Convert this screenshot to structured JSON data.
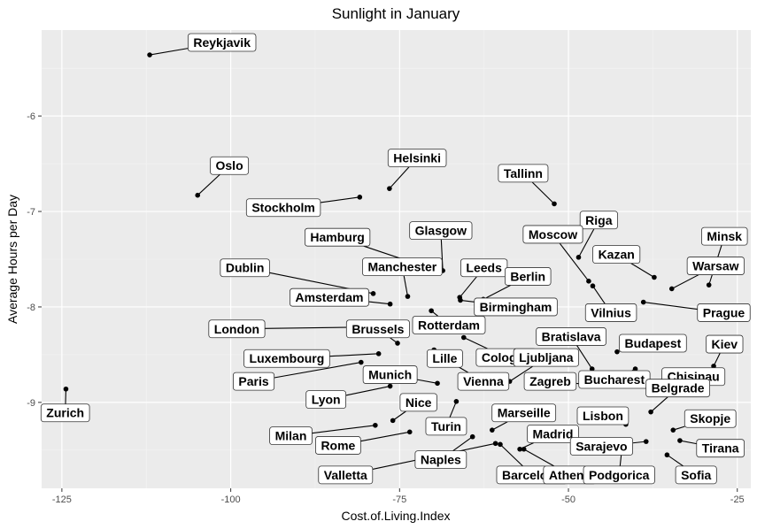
{
  "chart_data": {
    "type": "scatter",
    "title": "Sunlight in January",
    "xlabel": "Cost.of.Living.Index",
    "ylabel": "Average Hours per Day",
    "xlim": [
      -128,
      -23
    ],
    "ylim": [
      -9.9,
      -5.1
    ],
    "xticks": [
      -125,
      -100,
      -75,
      -50,
      -25
    ],
    "yticks": [
      -9,
      -8,
      -7,
      -6
    ],
    "xtick_labels": [
      "-125",
      "-100",
      "-75",
      "-50",
      "-25"
    ],
    "ytick_labels": [
      "-9",
      "-8",
      "-7",
      "-6"
    ],
    "grid": true,
    "panel_background": "#ebebeb",
    "point_color": "#000000",
    "points": [
      {
        "label": "Reykjavik",
        "x": -112.0,
        "y": -5.36,
        "lx": -101.3,
        "ly": -5.23
      },
      {
        "label": "Oslo",
        "x": -104.9,
        "y": -6.83,
        "lx": -100.2,
        "ly": -6.52
      },
      {
        "label": "Helsinki",
        "x": -76.5,
        "y": -6.76,
        "lx": -72.4,
        "ly": -6.44
      },
      {
        "label": "Stockholm",
        "x": -80.9,
        "y": -6.85,
        "lx": -92.2,
        "ly": -6.96
      },
      {
        "label": "Tallinn",
        "x": -52.1,
        "y": -6.92,
        "lx": -56.7,
        "ly": -6.6
      },
      {
        "label": "Riga",
        "x": -48.5,
        "y": -7.48,
        "lx": -45.5,
        "ly": -7.09
      },
      {
        "label": "Hamburg",
        "x": -69.5,
        "y": -7.62,
        "lx": -84.2,
        "ly": -7.27
      },
      {
        "label": "Glasgow",
        "x": -68.6,
        "y": -7.62,
        "lx": -68.9,
        "ly": -7.2
      },
      {
        "label": "Moscow",
        "x": -47.0,
        "y": -7.73,
        "lx": -52.3,
        "ly": -7.24
      },
      {
        "label": "Minsk",
        "x": -29.2,
        "y": -7.77,
        "lx": -26.9,
        "ly": -7.26
      },
      {
        "label": "Kazan",
        "x": -37.3,
        "y": -7.69,
        "lx": -42.9,
        "ly": -7.45
      },
      {
        "label": "Dublin",
        "x": -78.9,
        "y": -7.86,
        "lx": -97.9,
        "ly": -7.59
      },
      {
        "label": "Manchester",
        "x": -73.8,
        "y": -7.89,
        "lx": -74.6,
        "ly": -7.58
      },
      {
        "label": "Leeds",
        "x": -66.1,
        "y": -7.9,
        "lx": -62.5,
        "ly": -7.59
      },
      {
        "label": "Warsaw",
        "x": -34.7,
        "y": -7.81,
        "lx": -28.2,
        "ly": -7.57
      },
      {
        "label": "Berlin",
        "x": -62.6,
        "y": -7.92,
        "lx": -56.0,
        "ly": -7.68
      },
      {
        "label": "Amsterdam",
        "x": -76.4,
        "y": -7.97,
        "lx": -85.4,
        "ly": -7.9
      },
      {
        "label": "Birmingham",
        "x": -66.0,
        "y": -7.93,
        "lx": -57.8,
        "ly": -8.0
      },
      {
        "label": "Vilnius",
        "x": -46.4,
        "y": -7.78,
        "lx": -43.7,
        "ly": -8.06
      },
      {
        "label": "Rotterdam",
        "x": -70.3,
        "y": -8.04,
        "lx": -67.7,
        "ly": -8.19
      },
      {
        "label": "London",
        "x": -78.9,
        "y": -8.21,
        "lx": -99.1,
        "ly": -8.23
      },
      {
        "label": "Brussels",
        "x": -75.3,
        "y": -8.38,
        "lx": -78.2,
        "ly": -8.23
      },
      {
        "label": "Prague",
        "x": -38.9,
        "y": -7.95,
        "lx": -27.0,
        "ly": -8.06
      },
      {
        "label": "Bratislava",
        "x": -46.5,
        "y": -8.65,
        "lx": -49.6,
        "ly": -8.31
      },
      {
        "label": "Budapest",
        "x": -42.8,
        "y": -8.47,
        "lx": -37.5,
        "ly": -8.38
      },
      {
        "label": "Kiev",
        "x": -28.5,
        "y": -8.62,
        "lx": -26.9,
        "ly": -8.39
      },
      {
        "label": "Luxembourg",
        "x": -78.1,
        "y": -8.49,
        "lx": -91.7,
        "ly": -8.54
      },
      {
        "label": "Cologne",
        "x": -65.5,
        "y": -8.32,
        "lx": -59.2,
        "ly": -8.53
      },
      {
        "label": "Lille",
        "x": -69.9,
        "y": -8.45,
        "lx": -68.3,
        "ly": -8.54
      },
      {
        "label": "Ljubljana",
        "x": -58.7,
        "y": -8.78,
        "lx": -53.3,
        "ly": -8.53
      },
      {
        "label": "Munich",
        "x": -69.4,
        "y": -8.8,
        "lx": -76.4,
        "ly": -8.71
      },
      {
        "label": "Paris",
        "x": -80.7,
        "y": -8.58,
        "lx": -96.6,
        "ly": -8.78
      },
      {
        "label": "Vienna",
        "x": -67.2,
        "y": -8.59,
        "lx": -62.6,
        "ly": -8.78
      },
      {
        "label": "Zagreb",
        "x": -47.4,
        "y": -8.81,
        "lx": -52.7,
        "ly": -8.78
      },
      {
        "label": "Bucharest",
        "x": -40.1,
        "y": -8.65,
        "lx": -43.2,
        "ly": -8.76
      },
      {
        "label": "Chisinau",
        "x": -32.8,
        "y": -8.72,
        "lx": -31.5,
        "ly": -8.73
      },
      {
        "label": "Belgrade",
        "x": -37.8,
        "y": -9.1,
        "lx": -33.8,
        "ly": -8.85
      },
      {
        "label": "Lyon",
        "x": -76.4,
        "y": -8.83,
        "lx": -85.9,
        "ly": -8.97
      },
      {
        "label": "Nice",
        "x": -76.0,
        "y": -9.19,
        "lx": -72.2,
        "ly": -9.0
      },
      {
        "label": "Zurich",
        "x": -124.4,
        "y": -8.86,
        "lx": -124.5,
        "ly": -9.11
      },
      {
        "label": "Marseille",
        "x": -61.3,
        "y": -9.29,
        "lx": -56.6,
        "ly": -9.11
      },
      {
        "label": "Lisbon",
        "x": -41.5,
        "y": -9.23,
        "lx": -44.9,
        "ly": -9.14
      },
      {
        "label": "Skopje",
        "x": -34.5,
        "y": -9.29,
        "lx": -29.0,
        "ly": -9.17
      },
      {
        "label": "Turin",
        "x": -66.6,
        "y": -8.99,
        "lx": -68.1,
        "ly": -9.25
      },
      {
        "label": "Milan",
        "x": -78.6,
        "y": -9.24,
        "lx": -91.1,
        "ly": -9.35
      },
      {
        "label": "Madrid",
        "x": -57.2,
        "y": -9.49,
        "lx": -52.3,
        "ly": -9.33
      },
      {
        "label": "Rome",
        "x": -73.5,
        "y": -9.31,
        "lx": -84.1,
        "ly": -9.45
      },
      {
        "label": "Sarajevo",
        "x": -38.5,
        "y": -9.41,
        "lx": -45.1,
        "ly": -9.46
      },
      {
        "label": "Tirana",
        "x": -33.5,
        "y": -9.4,
        "lx": -27.5,
        "ly": -9.48
      },
      {
        "label": "Naples",
        "x": -64.2,
        "y": -9.36,
        "lx": -68.9,
        "ly": -9.6
      },
      {
        "label": "Valletta",
        "x": -60.8,
        "y": -9.43,
        "lx": -83.0,
        "ly": -9.76
      },
      {
        "label": "Barcelona",
        "x": -60.1,
        "y": -9.44,
        "lx": -55.4,
        "ly": -9.76
      },
      {
        "label": "Athens",
        "x": -56.6,
        "y": -9.49,
        "lx": -49.8,
        "ly": -9.76
      },
      {
        "label": "Podgorica",
        "x": -42.0,
        "y": -9.43,
        "lx": -42.5,
        "ly": -9.76
      },
      {
        "label": "Sofia",
        "x": -35.4,
        "y": -9.55,
        "lx": -31.1,
        "ly": -9.76
      }
    ]
  }
}
